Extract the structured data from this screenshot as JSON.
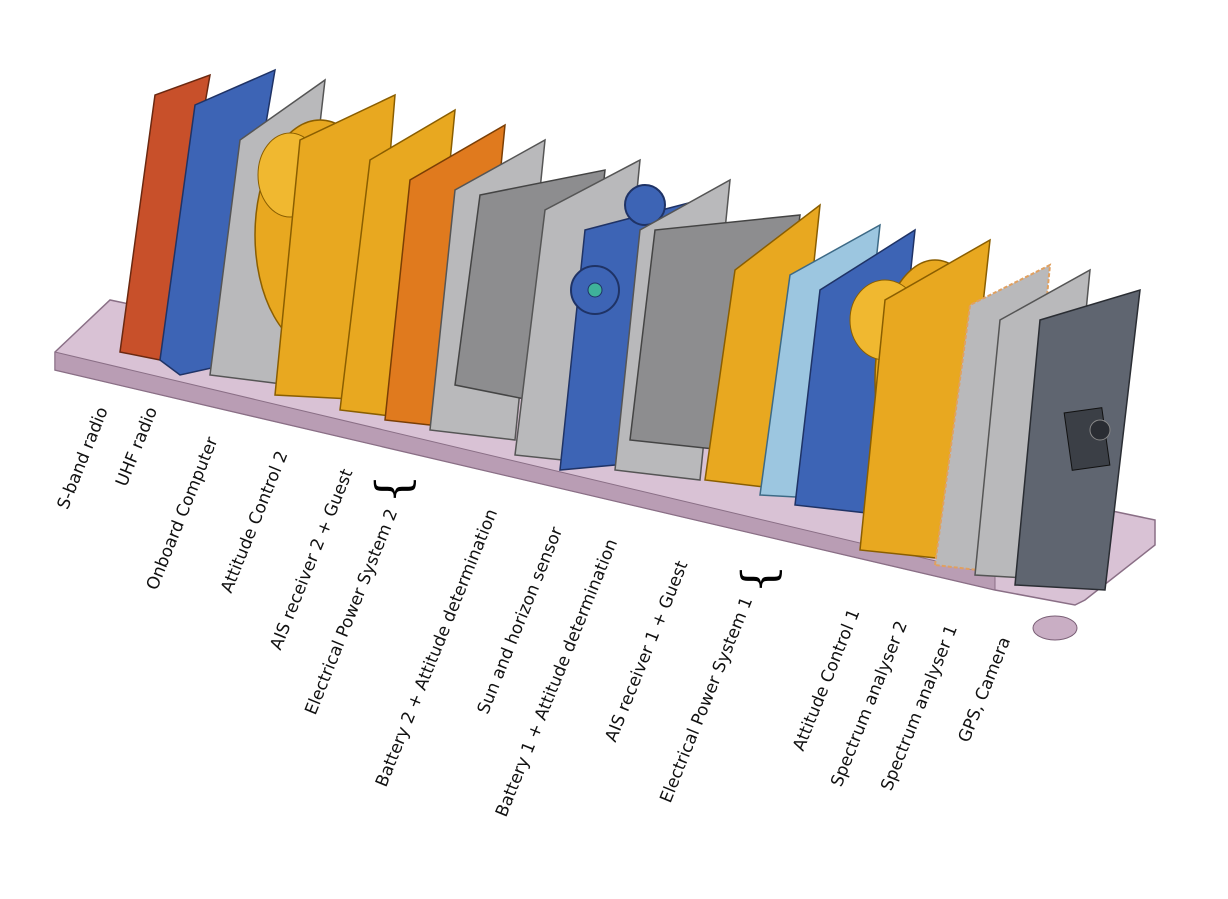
{
  "labels": [
    "S-band radio",
    "UHF radio",
    "Onboard Computer",
    "Attitude Control 2",
    "AIS receiver 2 + Guest",
    "Electrical Power System 2",
    "Battery 2 + Attitude determination",
    "Sun and horizon sensor",
    "Battery 1 + Attitude determination",
    "AIS receiver 1 + Guest",
    "Electrical Power System 1",
    "Attitude Control 1",
    "Spectrum analyser 2",
    "Spectrum analyser 1",
    "GPS, Camera"
  ],
  "brace_glyph": "{",
  "colors": {
    "s_band": "#c8502a",
    "uhf": "#3d64b5",
    "obc": "#b9b9bb",
    "gold": "#e8a820",
    "orange": "#e07a1e",
    "battery": "#8d8d8f",
    "light_blue": "#9cc6e0",
    "dark_grey": "#5f6570",
    "rail": "#d8c0d4"
  }
}
